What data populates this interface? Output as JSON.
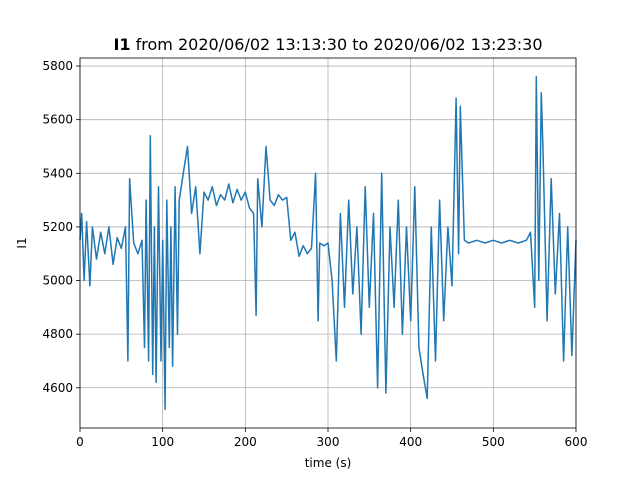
{
  "chart_data": {
    "type": "line",
    "title_bold": "I1",
    "title_rest": " from 2020/06/02 13:13:30 to 2020/06/02 13:23:30",
    "xlabel": "time (s)",
    "ylabel": "I1",
    "xlim": [
      0,
      600
    ],
    "ylim": [
      4450,
      5830
    ],
    "xticks": [
      0,
      100,
      200,
      300,
      400,
      500,
      600
    ],
    "yticks": [
      4600,
      4800,
      5000,
      5200,
      5400,
      5600,
      5800
    ],
    "grid": true,
    "line_color": "#1f77b4",
    "series": [
      {
        "x": [
          0,
          2,
          5,
          8,
          12,
          15,
          20,
          25,
          30,
          35,
          40,
          45,
          50,
          55,
          58,
          60,
          65,
          70,
          75,
          78,
          80,
          83,
          85,
          88,
          90,
          92,
          95,
          98,
          100,
          103,
          105,
          108,
          110,
          112,
          115,
          118,
          120,
          125,
          130,
          135,
          140,
          145,
          150,
          155,
          160,
          165,
          170,
          175,
          180,
          185,
          190,
          195,
          200,
          205,
          210,
          213,
          215,
          220,
          225,
          230,
          235,
          240,
          245,
          250,
          255,
          260,
          265,
          270,
          275,
          280,
          285,
          288,
          290,
          295,
          300,
          305,
          310,
          315,
          320,
          325,
          330,
          335,
          340,
          345,
          350,
          355,
          360,
          365,
          370,
          375,
          380,
          385,
          390,
          395,
          400,
          405,
          410,
          415,
          420,
          425,
          430,
          435,
          440,
          445,
          450,
          455,
          458,
          460,
          465,
          470,
          480,
          490,
          500,
          510,
          520,
          530,
          540,
          545,
          550,
          552,
          555,
          558,
          560,
          565,
          570,
          575,
          580,
          585,
          590,
          595,
          600
        ],
        "y": [
          5150,
          5250,
          5000,
          5220,
          4980,
          5200,
          5080,
          5180,
          5100,
          5200,
          5060,
          5160,
          5120,
          5200,
          4700,
          5380,
          5140,
          5100,
          5150,
          4750,
          5300,
          4700,
          5540,
          4650,
          5200,
          4620,
          5350,
          4700,
          5150,
          4520,
          5300,
          4750,
          5200,
          4680,
          5350,
          4800,
          5300,
          5400,
          5500,
          5250,
          5350,
          5100,
          5330,
          5300,
          5350,
          5280,
          5320,
          5300,
          5360,
          5290,
          5340,
          5300,
          5330,
          5270,
          5250,
          4870,
          5380,
          5200,
          5500,
          5300,
          5280,
          5320,
          5300,
          5310,
          5150,
          5180,
          5090,
          5130,
          5100,
          5120,
          5400,
          4850,
          5140,
          5130,
          5140,
          5000,
          4700,
          5250,
          4900,
          5300,
          4950,
          5200,
          4800,
          5350,
          4900,
          5250,
          4600,
          5400,
          4580,
          5200,
          4900,
          5300,
          4800,
          5200,
          4850,
          5350,
          4750,
          4650,
          4560,
          5200,
          4700,
          5300,
          4850,
          5200,
          4980,
          5680,
          5100,
          5650,
          5150,
          5140,
          5150,
          5140,
          5150,
          5140,
          5150,
          5140,
          5150,
          5180,
          4900,
          5760,
          5000,
          5700,
          5500,
          4850,
          5380,
          4950,
          5250,
          4700,
          5200,
          4720,
          5150
        ]
      }
    ]
  }
}
